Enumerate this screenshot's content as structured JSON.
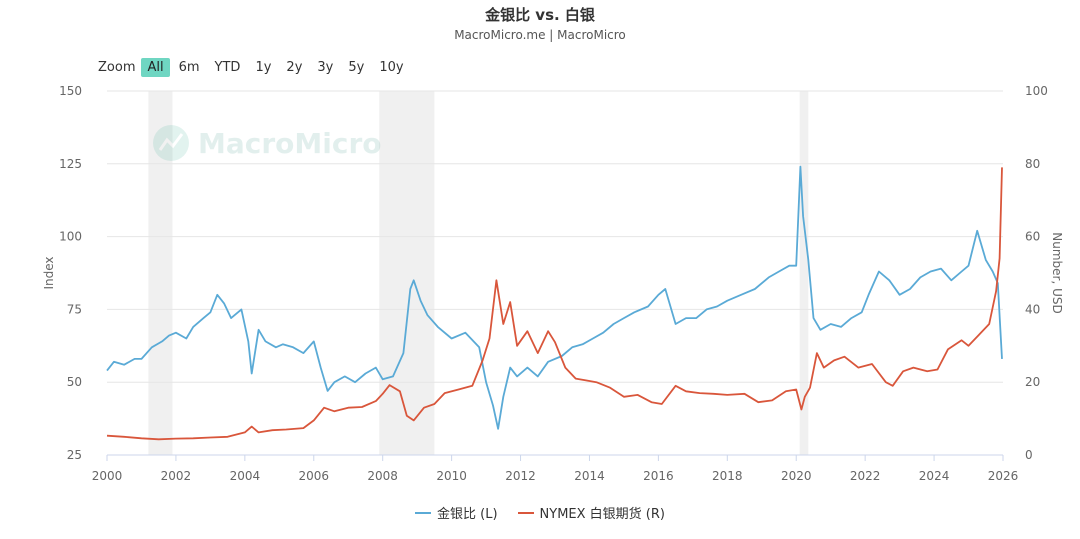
{
  "title": "金银比 vs. 白银",
  "subtitle": "MacroMicro.me | MacroMicro",
  "watermark": "MacroMicro",
  "zoom": {
    "label": "Zoom",
    "buttons": [
      "All",
      "6m",
      "YTD",
      "1y",
      "2y",
      "3y",
      "5y",
      "10y"
    ],
    "active": "All"
  },
  "colors": {
    "gold_silver_ratio": "#5aaad6",
    "silver": "#d9563b",
    "recession": "#f0f0f0",
    "zoom_active": "#6fd6c2"
  },
  "chart_data": {
    "type": "line",
    "title": "金银比 vs. 白银",
    "xlim": [
      2000,
      2026
    ],
    "x_ticks": [
      2000,
      2002,
      2004,
      2006,
      2008,
      2010,
      2012,
      2014,
      2016,
      2018,
      2020,
      2022,
      2024,
      2026
    ],
    "y_left": {
      "label": "Index",
      "range": [
        25,
        150
      ],
      "ticks": [
        25,
        50,
        75,
        100,
        125,
        150
      ]
    },
    "y_right": {
      "label": "Number, USD",
      "range": [
        0,
        100
      ],
      "ticks": [
        0,
        20,
        40,
        60,
        80,
        100
      ]
    },
    "grid": true,
    "legend_position": "bottom-center",
    "recession_shading": [
      [
        2001.2,
        2001.9
      ],
      [
        2007.9,
        2009.5
      ],
      [
        2020.1,
        2020.35
      ]
    ],
    "series": [
      {
        "name": "金银比 (L)",
        "axis": "left",
        "color": "#5aaad6",
        "x": [
          2000.0,
          2000.2,
          2000.5,
          2000.8,
          2001.0,
          2001.3,
          2001.6,
          2001.8,
          2002.0,
          2002.3,
          2002.5,
          2002.8,
          2003.0,
          2003.2,
          2003.4,
          2003.6,
          2003.9,
          2004.1,
          2004.2,
          2004.4,
          2004.6,
          2004.9,
          2005.1,
          2005.4,
          2005.7,
          2006.0,
          2006.2,
          2006.4,
          2006.6,
          2006.9,
          2007.2,
          2007.5,
          2007.8,
          2008.0,
          2008.3,
          2008.6,
          2008.8,
          2008.9,
          2009.1,
          2009.3,
          2009.6,
          2010.0,
          2010.4,
          2010.8,
          2011.0,
          2011.2,
          2011.35,
          2011.5,
          2011.7,
          2011.9,
          2012.2,
          2012.5,
          2012.8,
          2013.2,
          2013.5,
          2013.8,
          2014.1,
          2014.4,
          2014.7,
          2015.0,
          2015.3,
          2015.7,
          2016.0,
          2016.2,
          2016.5,
          2016.8,
          2017.1,
          2017.4,
          2017.7,
          2018.0,
          2018.4,
          2018.8,
          2019.2,
          2019.5,
          2019.8,
          2020.0,
          2020.12,
          2020.2,
          2020.35,
          2020.5,
          2020.7,
          2021.0,
          2021.3,
          2021.6,
          2021.9,
          2022.1,
          2022.4,
          2022.7,
          2023.0,
          2023.3,
          2023.6,
          2023.9,
          2024.2,
          2024.5,
          2024.8,
          2025.0,
          2025.25,
          2025.5,
          2025.7,
          2025.85,
          2025.97
        ],
        "y": [
          54,
          57,
          56,
          58,
          58,
          62,
          64,
          66,
          67,
          65,
          69,
          72,
          74,
          80,
          77,
          72,
          75,
          64,
          53,
          68,
          64,
          62,
          63,
          62,
          60,
          64,
          55,
          47,
          50,
          52,
          50,
          53,
          55,
          51,
          52,
          60,
          82,
          85,
          78,
          73,
          69,
          65,
          67,
          62,
          50,
          42,
          34,
          45,
          55,
          52,
          55,
          52,
          57,
          59,
          62,
          63,
          65,
          67,
          70,
          72,
          74,
          76,
          80,
          82,
          70,
          72,
          72,
          75,
          76,
          78,
          80,
          82,
          86,
          88,
          90,
          90,
          124,
          107,
          92,
          72,
          68,
          70,
          69,
          72,
          74,
          80,
          88,
          85,
          80,
          82,
          86,
          88,
          89,
          85,
          88,
          90,
          102,
          92,
          88,
          84,
          58
        ]
      },
      {
        "name": "NYMEX 白银期货 (R)",
        "axis": "right",
        "color": "#d9563b",
        "x": [
          2000.0,
          2000.5,
          2001.0,
          2001.5,
          2002.0,
          2002.5,
          2003.0,
          2003.5,
          2004.0,
          2004.2,
          2004.4,
          2004.8,
          2005.2,
          2005.7,
          2006.0,
          2006.3,
          2006.6,
          2007.0,
          2007.4,
          2007.8,
          2008.0,
          2008.2,
          2008.5,
          2008.7,
          2008.9,
          2009.2,
          2009.5,
          2009.8,
          2010.2,
          2010.6,
          2010.9,
          2011.1,
          2011.3,
          2011.5,
          2011.7,
          2011.9,
          2012.2,
          2012.5,
          2012.8,
          2013.0,
          2013.3,
          2013.6,
          2013.9,
          2014.2,
          2014.6,
          2015.0,
          2015.4,
          2015.8,
          2016.1,
          2016.5,
          2016.8,
          2017.2,
          2017.6,
          2018.0,
          2018.5,
          2018.9,
          2019.3,
          2019.7,
          2020.0,
          2020.15,
          2020.25,
          2020.4,
          2020.6,
          2020.8,
          2021.1,
          2021.4,
          2021.8,
          2022.2,
          2022.6,
          2022.8,
          2023.1,
          2023.4,
          2023.8,
          2024.1,
          2024.4,
          2024.8,
          2025.0,
          2025.3,
          2025.6,
          2025.8,
          2025.9,
          2025.97
        ],
        "y": [
          5.3,
          5.0,
          4.6,
          4.3,
          4.5,
          4.6,
          4.8,
          5.0,
          6.2,
          7.8,
          6.2,
          6.8,
          7.0,
          7.4,
          9.5,
          13.0,
          12.0,
          13.0,
          13.2,
          14.8,
          16.8,
          19.2,
          17.5,
          10.8,
          9.5,
          13.0,
          14.0,
          17.0,
          18.0,
          19.0,
          26.0,
          32.0,
          48.0,
          36.0,
          42.0,
          30.0,
          34.0,
          28.0,
          34.0,
          31.0,
          24.0,
          21.0,
          20.5,
          20.0,
          18.5,
          16.0,
          16.5,
          14.5,
          14.0,
          19.0,
          17.5,
          17.0,
          16.8,
          16.5,
          16.8,
          14.5,
          15.0,
          17.5,
          18.0,
          12.5,
          16.0,
          18.5,
          28.0,
          24.0,
          26.0,
          27.0,
          24.0,
          25.0,
          20.0,
          19.0,
          23.0,
          24.0,
          23.0,
          23.5,
          29.0,
          31.5,
          30.0,
          33.0,
          36.0,
          45.0,
          54.0,
          79.0
        ]
      }
    ]
  }
}
